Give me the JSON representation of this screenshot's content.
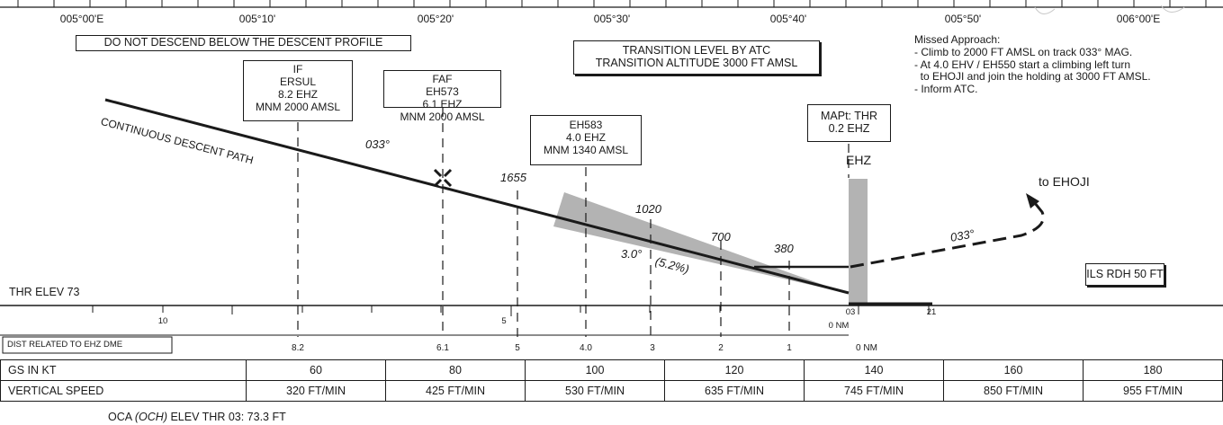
{
  "longitudes": [
    "005°00'E",
    "005°10'",
    "005°20'",
    "005°30'",
    "005°40'",
    "005°50'",
    "006°00'E"
  ],
  "warning": "DO NOT DESCEND BELOW THE DESCENT PROFILE",
  "transition": {
    "line1": "TRANSITION LEVEL BY ATC",
    "line2": "TRANSITION ALTITUDE 3000 FT AMSL"
  },
  "missed_approach": {
    "title": "Missed Approach:",
    "lines": [
      "- Climb to 2000 FT AMSL on track 033° MAG.",
      "- At 4.0 EHV / EH550 start a climbing left turn",
      "  to EHOJI and join the holding at 3000 FT AMSL.",
      "- Inform ATC."
    ]
  },
  "fixes": {
    "if": [
      "IF",
      "ERSUL",
      "8.2 EHZ",
      "MNM 2000 AMSL"
    ],
    "faf": [
      "FAF",
      "EH573",
      "6.1 EHZ",
      "MNM 2000 AMSL"
    ],
    "eh583": [
      "EH583",
      "4.0 EHZ",
      "MNM 1340 AMSL"
    ],
    "mapt": [
      "MAPt: THR",
      "0.2 EHZ"
    ]
  },
  "labels": {
    "cdp": "CONTINUOUS DESCENT PATH",
    "track_inbound": "033°",
    "track_missed": "033°",
    "angle": "3.0°",
    "gradient": "(5.2%)",
    "ehz": "EHZ",
    "to_ehoji": "to EHOJI",
    "ils_rdh": "ILS RDH 50 FT",
    "thr_elev": "THR ELEV 73",
    "dist_header": "DIST RELATED TO EHZ DME",
    "oca": "OCA (OCH) ELEV THR 03: 73.3 FT",
    "rwy03": "03",
    "rwy21": "21",
    "zero_nm_upper": "0 NM",
    "zero_nm_lower": "0 NM"
  },
  "altitudes": [
    "1655",
    "1020",
    "700",
    "380"
  ],
  "scale_ticks": [
    "10",
    "5"
  ],
  "distances": [
    "8.2",
    "6.1",
    "5",
    "4.0",
    "3",
    "2",
    "1"
  ],
  "table": {
    "gs_label": "GS IN KT",
    "vs_label": "VERTICAL SPEED",
    "gs": [
      "60",
      "80",
      "100",
      "120",
      "140",
      "160",
      "180"
    ],
    "vs": [
      "320 FT/MIN",
      "425 FT/MIN",
      "530 FT/MIN",
      "635 FT/MIN",
      "745 FT/MIN",
      "850 FT/MIN",
      "955 FT/MIN"
    ]
  },
  "colors": {
    "ink": "#1a1a1a",
    "shade": "#b3b3b3"
  }
}
